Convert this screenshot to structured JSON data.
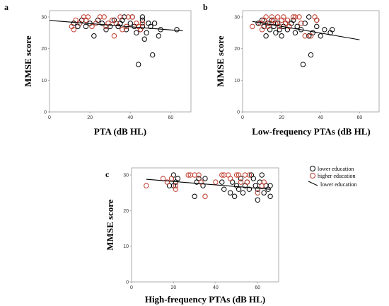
{
  "colors": {
    "lower": "#000000",
    "higher": "#c0392b",
    "fit": "#000000"
  },
  "legend": {
    "lower": "lower education",
    "higher": "higher education",
    "line": "lower education"
  },
  "chart_data": [
    {
      "type": "scatter",
      "panel_label": "a",
      "xlabel": "PTA (dB HL)",
      "ylabel": "MMSE score",
      "xlim": [
        0,
        70
      ],
      "ylim": [
        0,
        32
      ],
      "xticks": [
        0,
        20,
        40,
        60
      ],
      "yticks": [
        0,
        10,
        20,
        30
      ],
      "fit": {
        "x": [
          0,
          66
        ],
        "y": [
          28.9,
          25.6
        ]
      },
      "series": [
        {
          "group": "lower",
          "points": [
            [
              12,
              28
            ],
            [
              14,
              27
            ],
            [
              16,
              29
            ],
            [
              18,
              27
            ],
            [
              20,
              28
            ],
            [
              22,
              24
            ],
            [
              24,
              29
            ],
            [
              26,
              28
            ],
            [
              28,
              26
            ],
            [
              30,
              27
            ],
            [
              32,
              29
            ],
            [
              34,
              27
            ],
            [
              36,
              29
            ],
            [
              38,
              26
            ],
            [
              40,
              28
            ],
            [
              42,
              27
            ],
            [
              43,
              25
            ],
            [
              44,
              15
            ],
            [
              45,
              26
            ],
            [
              46,
              29
            ],
            [
              46,
              30
            ],
            [
              47,
              23
            ],
            [
              48,
              25
            ],
            [
              50,
              27
            ],
            [
              51,
              18
            ],
            [
              52,
              28
            ],
            [
              54,
              24
            ],
            [
              55,
              26
            ],
            [
              63,
              26
            ],
            [
              35,
              28
            ],
            [
              37,
              30
            ],
            [
              41,
              30
            ],
            [
              46,
              27
            ],
            [
              49,
              28
            ]
          ]
        },
        {
          "group": "higher",
          "points": [
            [
              11,
              27
            ],
            [
              12,
              26
            ],
            [
              13,
              29
            ],
            [
              15,
              28
            ],
            [
              17,
              30
            ],
            [
              18,
              29
            ],
            [
              19,
              30
            ],
            [
              21,
              27
            ],
            [
              23,
              28
            ],
            [
              25,
              30
            ],
            [
              27,
              30
            ],
            [
              28,
              27
            ],
            [
              29,
              28
            ],
            [
              31,
              29
            ],
            [
              32,
              24
            ],
            [
              33,
              28
            ],
            [
              35,
              30
            ],
            [
              36,
              26
            ],
            [
              38,
              27
            ],
            [
              39,
              30
            ],
            [
              41,
              30
            ],
            [
              43,
              28
            ],
            [
              44,
              27
            ],
            [
              45,
              26
            ],
            [
              46,
              28
            ]
          ]
        }
      ]
    },
    {
      "type": "scatter",
      "panel_label": "b",
      "xlabel": "Low-frequency PTAs (dB HL)",
      "ylabel": "MMSE score",
      "xlim": [
        0,
        70
      ],
      "ylim": [
        0,
        32
      ],
      "xticks": [
        0,
        20,
        40,
        60
      ],
      "yticks": [
        0,
        10,
        20,
        30
      ],
      "fit": {
        "x": [
          5,
          60
        ],
        "y": [
          28.6,
          22.8
        ]
      },
      "series": [
        {
          "group": "lower",
          "points": [
            [
              8,
              28
            ],
            [
              10,
              29
            ],
            [
              11,
              27
            ],
            [
              12,
              24
            ],
            [
              13,
              28
            ],
            [
              14,
              26
            ],
            [
              15,
              29
            ],
            [
              16,
              27
            ],
            [
              17,
              25
            ],
            [
              18,
              28
            ],
            [
              19,
              26
            ],
            [
              20,
              24
            ],
            [
              21,
              27
            ],
            [
              22,
              28
            ],
            [
              23,
              26
            ],
            [
              25,
              28
            ],
            [
              26,
              29
            ],
            [
              27,
              25
            ],
            [
              28,
              27
            ],
            [
              30,
              26
            ],
            [
              31,
              15
            ],
            [
              32,
              28
            ],
            [
              34,
              24
            ],
            [
              35,
              18
            ],
            [
              36,
              25
            ],
            [
              38,
              27
            ],
            [
              38,
              29
            ],
            [
              40,
              24
            ],
            [
              42,
              26
            ],
            [
              45,
              25
            ],
            [
              46,
              26
            ],
            [
              34,
              30
            ]
          ]
        },
        {
          "group": "higher",
          "points": [
            [
              5,
              27
            ],
            [
              9,
              28
            ],
            [
              10,
              26
            ],
            [
              11,
              29
            ],
            [
              12,
              30
            ],
            [
              13,
              27
            ],
            [
              14,
              28
            ],
            [
              15,
              30
            ],
            [
              16,
              29
            ],
            [
              17,
              28
            ],
            [
              18,
              30
            ],
            [
              19,
              27
            ],
            [
              20,
              29
            ],
            [
              21,
              30
            ],
            [
              22,
              28
            ],
            [
              23,
              29
            ],
            [
              24,
              27
            ],
            [
              26,
              30
            ],
            [
              27,
              30
            ],
            [
              29,
              30
            ],
            [
              30,
              28
            ],
            [
              32,
              24
            ],
            [
              35,
              24
            ],
            [
              37,
              30
            ],
            [
              38,
              29
            ]
          ]
        }
      ]
    },
    {
      "type": "scatter",
      "panel_label": "c",
      "xlabel": "High-frequency PTAs (dB HL)",
      "ylabel": "MMSE score",
      "xlim": [
        0,
        70
      ],
      "ylim": [
        0,
        32
      ],
      "xticks": [
        0,
        20,
        40,
        60
      ],
      "yticks": [
        0,
        10,
        20,
        30
      ],
      "fit": {
        "x": [
          7,
          66
        ],
        "y": [
          28.8,
          26.0
        ]
      },
      "series": [
        {
          "group": "lower",
          "points": [
            [
              18,
              27
            ],
            [
              20,
              30
            ],
            [
              20,
              27
            ],
            [
              21,
              28
            ],
            [
              22,
              29
            ],
            [
              30,
              24
            ],
            [
              31,
              28
            ],
            [
              32,
              29
            ],
            [
              34,
              27
            ],
            [
              35,
              29
            ],
            [
              43,
              28
            ],
            [
              44,
              26
            ],
            [
              47,
              25
            ],
            [
              48,
              28
            ],
            [
              49,
              24
            ],
            [
              50,
              27
            ],
            [
              51,
              26
            ],
            [
              52,
              29
            ],
            [
              53,
              25
            ],
            [
              54,
              27
            ],
            [
              55,
              28
            ],
            [
              56,
              26
            ],
            [
              57,
              30
            ],
            [
              58,
              29
            ],
            [
              59,
              27
            ],
            [
              60,
              23
            ],
            [
              60,
              26
            ],
            [
              61,
              28
            ],
            [
              62,
              30
            ],
            [
              63,
              25
            ],
            [
              64,
              27
            ],
            [
              65,
              26
            ],
            [
              66,
              24
            ],
            [
              66,
              27
            ]
          ]
        },
        {
          "group": "higher",
          "points": [
            [
              7,
              27
            ],
            [
              15,
              29
            ],
            [
              17,
              28
            ],
            [
              19,
              29
            ],
            [
              21,
              26
            ],
            [
              21,
              27
            ],
            [
              27,
              30
            ],
            [
              28,
              30
            ],
            [
              30,
              30
            ],
            [
              32,
              30
            ],
            [
              33,
              28
            ],
            [
              35,
              24
            ],
            [
              40,
              28
            ],
            [
              43,
              30
            ],
            [
              44,
              30
            ],
            [
              46,
              30
            ],
            [
              47,
              29
            ],
            [
              50,
              30
            ],
            [
              51,
              30
            ],
            [
              52,
              28
            ],
            [
              54,
              30
            ],
            [
              55,
              28
            ],
            [
              56,
              30
            ],
            [
              60,
              25
            ],
            [
              62,
              27
            ],
            [
              63,
              28
            ]
          ]
        }
      ]
    }
  ]
}
